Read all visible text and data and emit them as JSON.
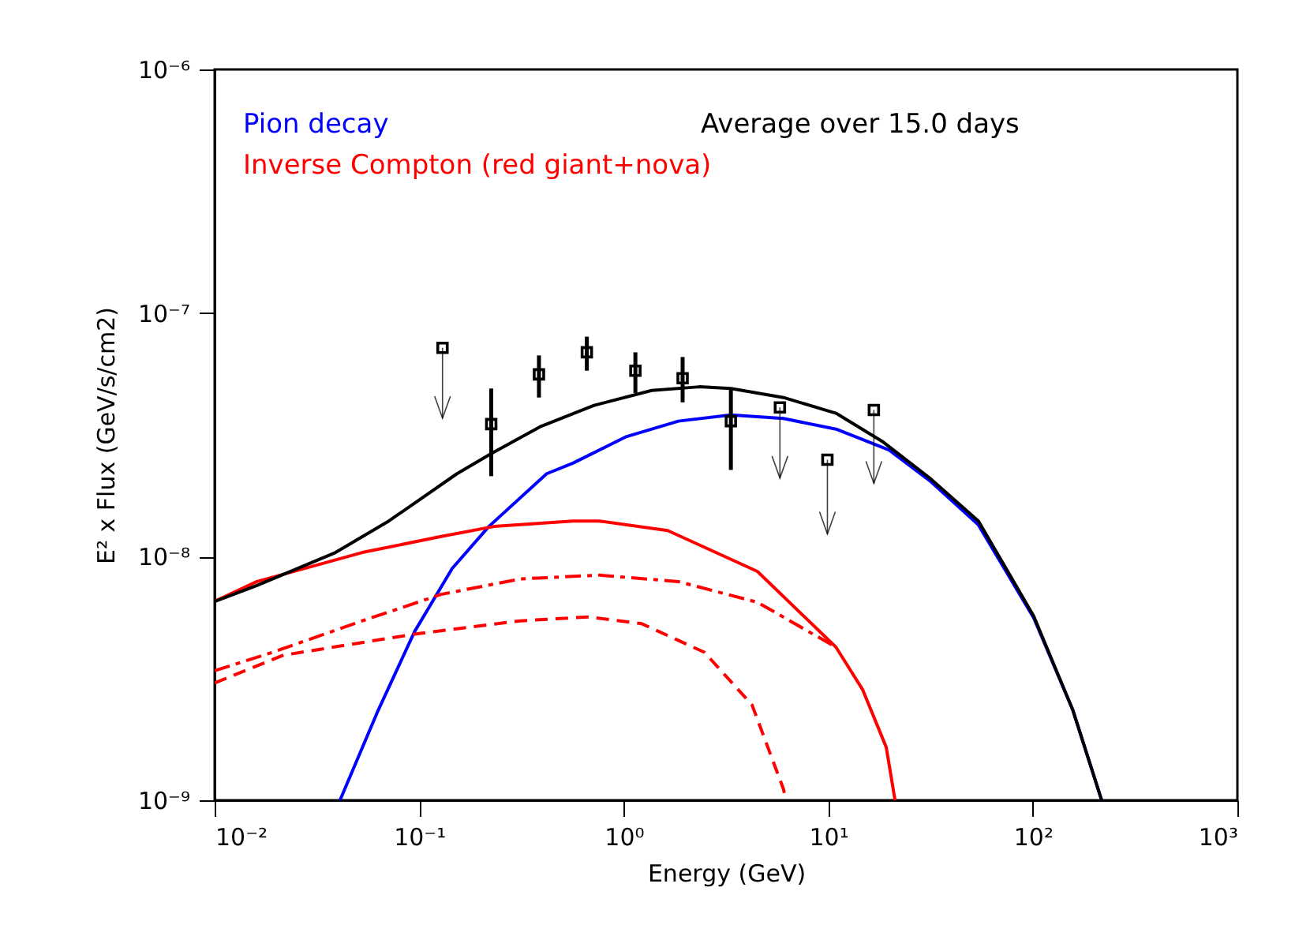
{
  "chart_data": {
    "type": "line",
    "xlabel": "Energy (GeV)",
    "ylabel": "E² x Flux (GeV/s/cm2)",
    "log": "xy",
    "grid": false,
    "legend": "top left",
    "xlim": [
      0.01,
      1000
    ],
    "ylim": [
      1e-09,
      1e-06
    ],
    "xticks": [
      {
        "value": 0.01,
        "label": "10⁻²"
      },
      {
        "value": 0.1,
        "label": "10⁻¹"
      },
      {
        "value": 1,
        "label": "10⁰"
      },
      {
        "value": 10,
        "label": "10¹"
      },
      {
        "value": 100,
        "label": "10²"
      },
      {
        "value": 1000,
        "label": "10³"
      }
    ],
    "yticks": [
      {
        "value": 1e-09,
        "label": "10⁻⁹"
      },
      {
        "value": 1e-08,
        "label": "10⁻⁸"
      },
      {
        "value": 1e-07,
        "label": "10⁻⁷"
      },
      {
        "value": 1e-06,
        "label": "10⁻⁶"
      }
    ],
    "annotations": [
      "Average over 15.0 days"
    ],
    "series": [
      {
        "name": "Pion decay",
        "type": "line",
        "color": "#0000ff",
        "line_style": "solid",
        "x": [
          0.041,
          0.063,
          0.095,
          0.145,
          0.219,
          0.42,
          0.564,
          1.02,
          1.85,
          3.34,
          6.04,
          10.9,
          19.8,
          31.8,
          54.2,
          101,
          157,
          217
        ],
        "values": [
          1e-09,
          2.34e-09,
          4.93e-09,
          8.95e-09,
          1.33e-08,
          2.19e-08,
          2.42e-08,
          3.1e-08,
          3.6e-08,
          3.82e-08,
          3.69e-08,
          3.34e-08,
          2.74e-08,
          2.03e-08,
          1.35e-08,
          5.6e-09,
          2.34e-09,
          1e-09
        ]
      },
      {
        "name": "Inverse Compton (red giant+nova)",
        "type": "line",
        "color": "#ff0000",
        "line_style": "solid",
        "x": [
          0.01,
          0.0161,
          0.0527,
          0.128,
          0.232,
          0.564,
          0.759,
          1.64,
          4.5,
          10.9,
          14.7,
          19.2,
          21.2
        ],
        "values": [
          6.55e-09,
          7.9e-09,
          1.04e-08,
          1.21e-08,
          1.33e-08,
          1.4e-08,
          1.4e-08,
          1.28e-08,
          8.7e-09,
          4.25e-09,
          2.85e-09,
          1.65e-09,
          1e-09
        ]
      },
      {
        "type": "line",
        "color": "#ff0000",
        "line_style": "dashdot",
        "x": [
          0.01,
          0.0192,
          0.0527,
          0.128,
          0.312,
          0.759,
          1.85,
          4.5,
          10.9
        ],
        "values": [
          3.4e-09,
          4.05e-09,
          5.45e-09,
          7e-09,
          8.1e-09,
          8.4e-09,
          7.9e-09,
          6.5e-09,
          4.25e-09
        ]
      },
      {
        "type": "line",
        "color": "#ff0000",
        "line_style": "dashed",
        "x": [
          0.01,
          0.0217,
          0.095,
          0.312,
          0.673,
          1.22,
          2.48,
          4.24,
          6.04,
          6.2
        ],
        "values": [
          3.03e-09,
          3.94e-09,
          4.81e-09,
          5.45e-09,
          5.66e-09,
          5.31e-09,
          4.05e-09,
          2.46e-09,
          1.11e-09,
          1e-09
        ]
      },
      {
        "type": "line",
        "color": "#000000",
        "line_style": "solid",
        "x": [
          0.01,
          0.016,
          0.039,
          0.071,
          0.153,
          0.225,
          0.395,
          0.716,
          1.37,
          2.34,
          3.34,
          6.04,
          10.9,
          18.6,
          31.8,
          54.2,
          101,
          157,
          217
        ],
        "values": [
          6.55e-09,
          7.6e-09,
          1.04e-08,
          1.4e-08,
          2.19e-08,
          2.65e-08,
          3.43e-08,
          4.18e-08,
          4.81e-08,
          4.98e-08,
          4.9e-08,
          4.5e-08,
          3.88e-08,
          2.95e-08,
          2.08e-08,
          1.4e-08,
          5.7e-09,
          2.34e-09,
          1e-09
        ]
      },
      {
        "type": "scatter",
        "color": "#000000",
        "marker": "square",
        "x": [
          0.225,
          0.385,
          0.66,
          1.14,
          1.94,
          3.34
        ],
        "values": [
          3.5e-08,
          5.6e-08,
          6.9e-08,
          5.8e-08,
          5.4e-08,
          3.6e-08
        ],
        "errors": [
          [
            2.14e-08,
            4.9e-08
          ],
          [
            4.5e-08,
            6.7e-08
          ],
          [
            5.8e-08,
            8e-08
          ],
          [
            4.7e-08,
            6.9e-08
          ],
          [
            4.3e-08,
            6.6e-08
          ],
          [
            2.27e-08,
            4.85e-08
          ]
        ]
      },
      {
        "type": "scatter",
        "color": "#000000",
        "marker": "square",
        "x": [
          0.13,
          5.8,
          9.9,
          16.7
        ],
        "values": [
          7.2e-08,
          4.1e-08,
          2.5e-08,
          4e-08
        ],
        "errors": [
          [
            3.7e-08,
            7.2e-08
          ],
          [
            2.1e-08,
            4.1e-08
          ],
          [
            1.24e-08,
            2.5e-08
          ],
          [
            2e-08,
            4e-08
          ]
        ]
      }
    ]
  }
}
